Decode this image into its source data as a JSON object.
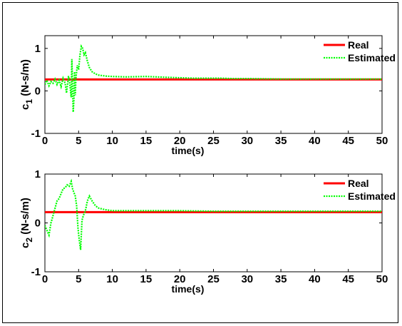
{
  "colors": {
    "real": "#ff0000",
    "estimated": "#00ff00",
    "axis": "#000000"
  },
  "chart_data": [
    {
      "type": "line",
      "title": "",
      "xlabel": "time(s)",
      "ylabel_main": "c",
      "ylabel_sub": "1",
      "ylabel_unit": " (N-s/m)",
      "xlim": [
        0,
        50
      ],
      "ylim": [
        -1,
        1.3
      ],
      "xticks": [
        "0",
        "5",
        "10",
        "15",
        "20",
        "25",
        "30",
        "35",
        "40",
        "45",
        "50"
      ],
      "yticks": [
        {
          "v": -1,
          "label": "-1"
        },
        {
          "v": 0,
          "label": "0"
        },
        {
          "v": 1,
          "label": "1"
        }
      ],
      "grid": false,
      "legend": {
        "position": "top-right",
        "entries": [
          "Real",
          "Estimated"
        ]
      },
      "series": [
        {
          "name": "Real",
          "x": [
            0,
            50
          ],
          "y": [
            0.27,
            0.27
          ]
        },
        {
          "name": "Estimated",
          "x": [
            0,
            0.3,
            0.6,
            0.9,
            1.2,
            1.5,
            1.8,
            2.1,
            2.4,
            2.7,
            3.0,
            3.2,
            3.5,
            3.7,
            3.9,
            4.0,
            4.1,
            4.2,
            4.3,
            4.4,
            4.5,
            4.6,
            4.8,
            5.0,
            5.2,
            5.4,
            5.6,
            5.8,
            6.0,
            6.3,
            6.6,
            7.0,
            7.5,
            8.0,
            9.0,
            10,
            12,
            15,
            18,
            20,
            22,
            24,
            26,
            28,
            30,
            35,
            40,
            45,
            50
          ],
          "y": [
            0.15,
            0.25,
            0.12,
            0.22,
            0.18,
            0.28,
            0.15,
            0.25,
            0.1,
            0.3,
            0.18,
            -0.05,
            0.35,
            0.15,
            -0.15,
            0.75,
            0.1,
            -0.5,
            -0.2,
            0.45,
            -0.1,
            0.3,
            0.6,
            0.5,
            0.85,
            1.05,
            1.0,
            0.85,
            0.9,
            0.7,
            0.55,
            0.45,
            0.4,
            0.37,
            0.35,
            0.34,
            0.33,
            0.34,
            0.32,
            0.31,
            0.3,
            0.3,
            0.3,
            0.29,
            0.29,
            0.28,
            0.28,
            0.28,
            0.28
          ]
        }
      ]
    },
    {
      "type": "line",
      "title": "",
      "xlabel": "time(s)",
      "ylabel_main": "c",
      "ylabel_sub": "2",
      "ylabel_unit": " (N-s/m)",
      "xlim": [
        0,
        50
      ],
      "ylim": [
        -1,
        1
      ],
      "xticks": [
        "0",
        "5",
        "10",
        "15",
        "20",
        "25",
        "30",
        "35",
        "40",
        "45",
        "50"
      ],
      "yticks": [
        {
          "v": -1,
          "label": "-1"
        },
        {
          "v": 0,
          "label": "0"
        },
        {
          "v": 1,
          "label": "1"
        }
      ],
      "grid": false,
      "legend": {
        "position": "top-right",
        "entries": [
          "Real",
          "Estimated"
        ]
      },
      "series": [
        {
          "name": "Real",
          "x": [
            0,
            50
          ],
          "y": [
            0.22,
            0.22
          ]
        },
        {
          "name": "Estimated",
          "x": [
            0,
            0.3,
            0.6,
            0.9,
            1.2,
            1.5,
            1.8,
            2.1,
            2.4,
            2.7,
            3.0,
            3.3,
            3.6,
            3.9,
            4.1,
            4.3,
            4.5,
            4.7,
            4.9,
            5.1,
            5.3,
            5.5,
            5.7,
            6.0,
            6.3,
            6.6,
            7.0,
            7.5,
            8.0,
            9.0,
            10,
            12,
            15,
            20,
            25,
            30,
            35,
            40,
            45,
            50
          ],
          "y": [
            -0.05,
            -0.15,
            -0.25,
            0.0,
            0.15,
            0.3,
            0.45,
            0.5,
            0.6,
            0.7,
            0.72,
            0.78,
            0.75,
            0.85,
            0.7,
            0.62,
            0.55,
            0.35,
            -0.1,
            -0.35,
            -0.55,
            0.05,
            0.15,
            0.25,
            0.45,
            0.55,
            0.45,
            0.35,
            0.3,
            0.27,
            0.25,
            0.25,
            0.25,
            0.25,
            0.24,
            0.24,
            0.24,
            0.24,
            0.24,
            0.24
          ]
        }
      ]
    }
  ]
}
